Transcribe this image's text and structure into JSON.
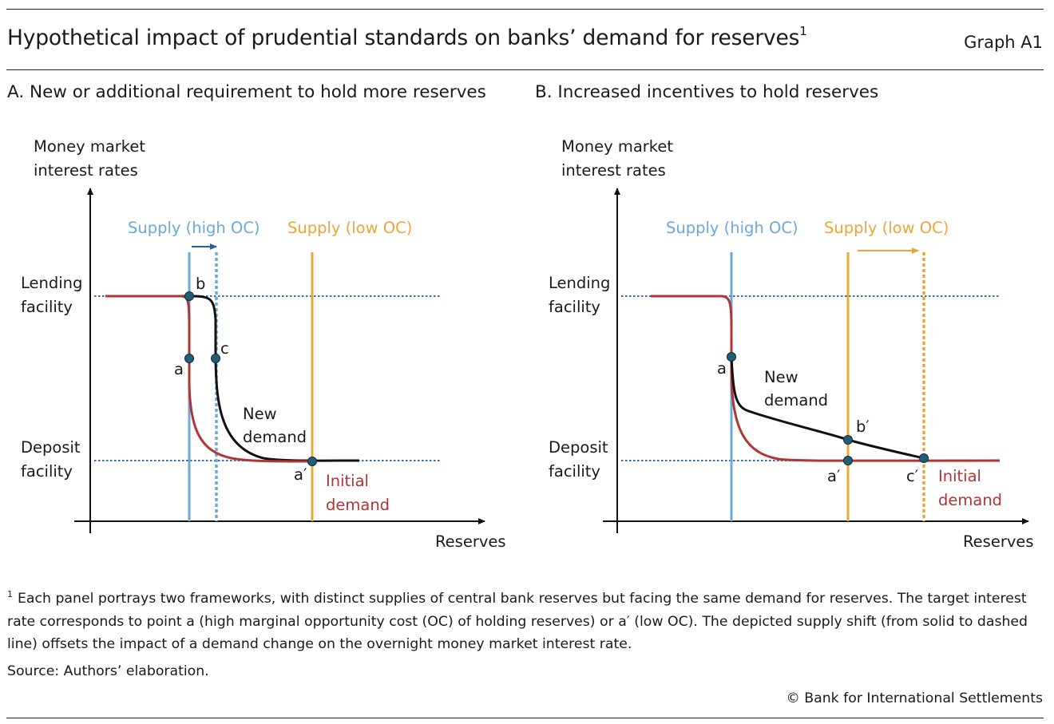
{
  "header": {
    "title": "Hypothetical impact of prudential standards on banks’ demand for reserves",
    "title_footnote_mark": "1",
    "graph_id": "Graph A1"
  },
  "panels": [
    {
      "title": "A. New or additional requirement to hold more reserves",
      "y_axis_label_line1": "Money market",
      "y_axis_label_line2": "interest rates",
      "x_axis_label": "Reserves",
      "lending_label_line1": "Lending",
      "lending_label_line2": "facility",
      "deposit_label_line1": "Deposit",
      "deposit_label_line2": "facility",
      "supply_high_label": "Supply (high OC)",
      "supply_low_label": "Supply (low OC)",
      "new_demand_line1": "New",
      "new_demand_line2": "demand",
      "initial_demand_line1": "Initial",
      "initial_demand_line2": "demand",
      "points": [
        "a",
        "b",
        "c",
        "a′"
      ]
    },
    {
      "title": "B. Increased incentives to hold reserves",
      "y_axis_label_line1": "Money market",
      "y_axis_label_line2": "interest rates",
      "x_axis_label": "Reserves",
      "lending_label_line1": "Lending",
      "lending_label_line2": "facility",
      "deposit_label_line1": "Deposit",
      "deposit_label_line2": "facility",
      "supply_high_label": "Supply (high OC)",
      "supply_low_label": "Supply (low OC)",
      "new_demand_line1": "New",
      "new_demand_line2": "demand",
      "initial_demand_line1": "Initial",
      "initial_demand_line2": "demand",
      "points": [
        "a",
        "b′",
        "a′",
        "c′"
      ]
    }
  ],
  "footnote": {
    "mark": "1",
    "text": "Each panel portrays two frameworks, with distinct supplies of central bank reserves but facing the same demand for reserves. The target interest rate corresponds to point a (high marginal opportunity cost (OC) of holding reserves) or a′ (low OC). The depicted supply shift (from solid to dashed line) offsets the impact of a demand change on the overnight money market interest rate."
  },
  "source": "Source: Authors’ elaboration.",
  "copyright": "© Bank for International Settlements",
  "colors": {
    "initial_demand": "#b03535",
    "new_demand": "#111111",
    "supply_high": "#6aaad9",
    "supply_low": "#e8a838",
    "facility_rate_line": "#3b6ea8",
    "point_fill": "#215e78"
  }
}
